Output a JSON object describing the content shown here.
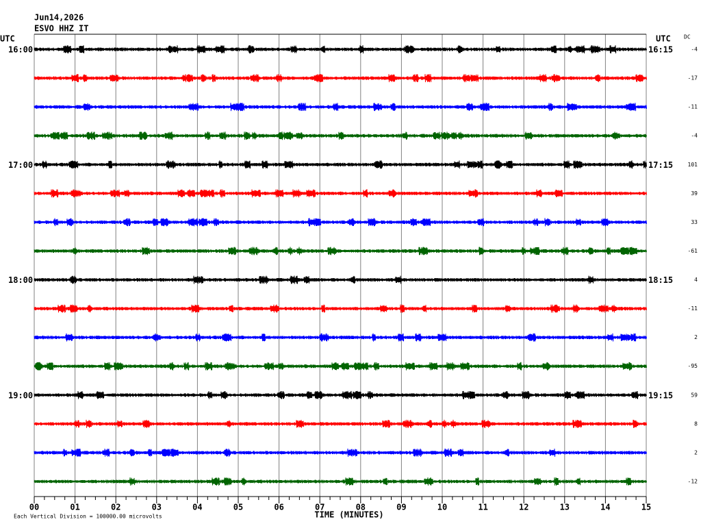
{
  "header": {
    "date": "Jun14,2026",
    "station": "ESVO HHZ IT",
    "utc_left": "UTC",
    "utc_right": "UTC",
    "dc_label": "DC"
  },
  "traces": [
    {
      "left": "16:00",
      "right": "16:15",
      "dc": -4,
      "color": "#000000"
    },
    {
      "dc": -17,
      "color": "#ff0000"
    },
    {
      "dc": -11,
      "color": "#0000ff"
    },
    {
      "dc": -4,
      "color": "#006400"
    },
    {
      "left": "17:00",
      "right": "17:15",
      "dc": 101,
      "color": "#000000"
    },
    {
      "dc": 39,
      "color": "#ff0000"
    },
    {
      "dc": 33,
      "color": "#0000ff"
    },
    {
      "dc": -61,
      "color": "#006400"
    },
    {
      "left": "18:00",
      "right": "18:15",
      "dc": 4,
      "color": "#000000"
    },
    {
      "dc": -11,
      "color": "#ff0000"
    },
    {
      "dc": 2,
      "color": "#0000ff"
    },
    {
      "dc": -95,
      "color": "#006400"
    },
    {
      "left": "19:00",
      "right": "19:15",
      "dc": 59,
      "color": "#000000"
    },
    {
      "dc": 8,
      "color": "#ff0000"
    },
    {
      "dc": 2,
      "color": "#0000ff"
    },
    {
      "dc": -12,
      "color": "#006400"
    }
  ],
  "x_axis": {
    "label": "TIME (MINUTES)",
    "xlim": [
      0,
      15
    ],
    "xticks": [
      {
        "value": 0,
        "label": "00"
      },
      {
        "value": 1,
        "label": "01"
      },
      {
        "value": 2,
        "label": "02"
      },
      {
        "value": 3,
        "label": "03"
      },
      {
        "value": 4,
        "label": "04"
      },
      {
        "value": 5,
        "label": "05"
      },
      {
        "value": 6,
        "label": "06"
      },
      {
        "value": 7,
        "label": "07"
      },
      {
        "value": 8,
        "label": "08"
      },
      {
        "value": 9,
        "label": "09"
      },
      10,
      11,
      12,
      13,
      14,
      15
    ]
  },
  "footer": "Each Vertical Division = 100000.00 microvolts"
}
